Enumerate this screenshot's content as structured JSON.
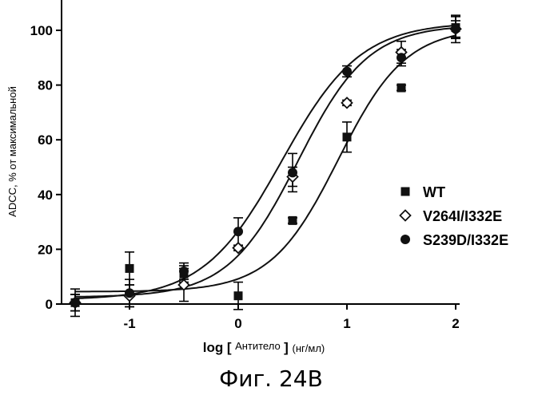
{
  "chart_data": {
    "type": "scatter",
    "title": "",
    "xlabel": {
      "prefix": "log [",
      "inner": "Антитело",
      "suffix": "] (нг/мл)"
    },
    "ylabel": "ADCC, % от максимальной",
    "xlim": [
      -1.65,
      2.15
    ],
    "ylim": [
      0,
      110
    ],
    "x_ticks": [
      -1,
      0,
      1,
      2
    ],
    "y_ticks": [
      0,
      20,
      40,
      60,
      80,
      100
    ],
    "legend_position": "right",
    "series": [
      {
        "name": "WT",
        "marker": "filled-square",
        "color": "#111111",
        "points": [
          {
            "x": -1.5,
            "y": 0.5,
            "err": 3
          },
          {
            "x": -1.0,
            "y": 13,
            "err": 6
          },
          {
            "x": -0.5,
            "y": 11,
            "err": 3
          },
          {
            "x": 0.0,
            "y": 3,
            "err": 5
          },
          {
            "x": 0.5,
            "y": 30.5,
            "err": 1
          },
          {
            "x": 1.0,
            "y": 61,
            "err": 5.5
          },
          {
            "x": 1.5,
            "y": 79,
            "err": 1
          },
          {
            "x": 2.0,
            "y": 101,
            "err": 4
          }
        ],
        "fit": {
          "bottom": 4.5,
          "top": 101,
          "log_ec50": 0.92,
          "hill": 1.4
        }
      },
      {
        "name": "V264I/I332E",
        "marker": "open-diamond",
        "color": "#111111",
        "points": [
          {
            "x": -1.5,
            "y": 0.5,
            "err": 5
          },
          {
            "x": -1.0,
            "y": 3,
            "err": 4
          },
          {
            "x": -0.5,
            "y": 7,
            "err": 6
          },
          {
            "x": 0.0,
            "y": 20.5,
            "err": 1
          },
          {
            "x": 0.5,
            "y": 46.5,
            "err": 3.5
          },
          {
            "x": 1.0,
            "y": 73.5,
            "err": 1
          },
          {
            "x": 1.5,
            "y": 92,
            "err": 4
          },
          {
            "x": 2.0,
            "y": 100.5,
            "err": 3
          }
        ],
        "fit": {
          "bottom": 2.5,
          "top": 102,
          "log_ec50": 0.55,
          "hill": 1.35
        }
      },
      {
        "name": "S239D/I332E",
        "marker": "filled-circle",
        "color": "#111111",
        "points": [
          {
            "x": -1.5,
            "y": 0.5,
            "err": 3
          },
          {
            "x": -1.0,
            "y": 4,
            "err": 5
          },
          {
            "x": -0.5,
            "y": 12,
            "err": 3
          },
          {
            "x": 0.0,
            "y": 26.5,
            "err": 5
          },
          {
            "x": 0.5,
            "y": 48,
            "err": 7
          },
          {
            "x": 1.0,
            "y": 85,
            "err": 2
          },
          {
            "x": 1.5,
            "y": 90,
            "err": 3
          },
          {
            "x": 2.0,
            "y": 100.5,
            "err": 5
          }
        ],
        "fit": {
          "bottom": 1.5,
          "top": 103,
          "log_ec50": 0.4,
          "hill": 1.2
        }
      }
    ]
  },
  "caption": "Фиг. 24B"
}
